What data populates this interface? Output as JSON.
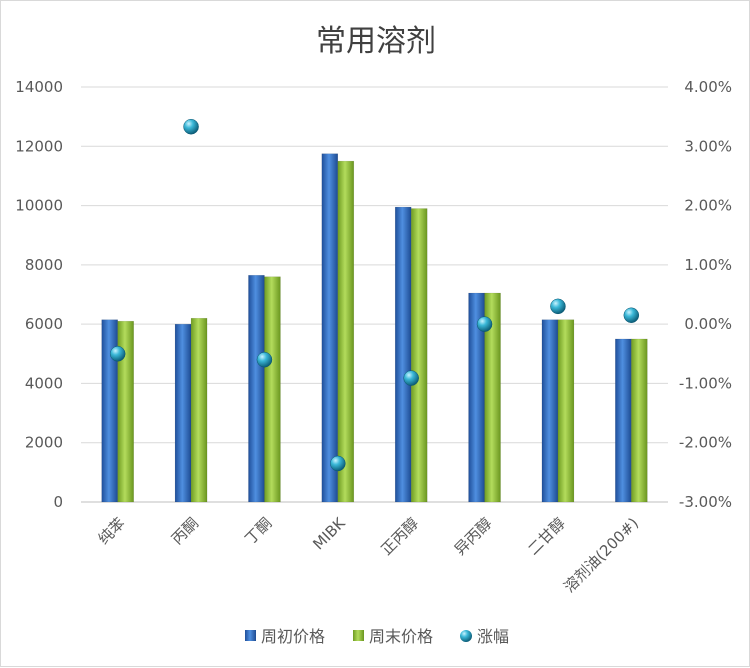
{
  "chart_data": {
    "type": "bar",
    "title": "常用溶剂",
    "categories": [
      "纯苯",
      "丙酮",
      "丁酮",
      "MIBK",
      "正丙醇",
      "异丙醇",
      "二甘醇",
      "溶剂油(200#)"
    ],
    "series": [
      {
        "name": "周初价格",
        "type": "bar",
        "axis": "left",
        "color": "#2e6fc9",
        "values": [
          6150,
          6000,
          7650,
          11750,
          9950,
          7050,
          6150,
          5500
        ]
      },
      {
        "name": "周末价格",
        "type": "bar",
        "axis": "left",
        "color": "#92c23e",
        "values": [
          6100,
          6200,
          7600,
          11500,
          9900,
          7050,
          6150,
          5500
        ]
      },
      {
        "name": "涨幅",
        "type": "scatter",
        "axis": "right",
        "color": "#2aa8c9",
        "values": [
          -0.005,
          0.0333,
          -0.006,
          -0.0235,
          -0.0091,
          0.0,
          0.003,
          0.0015
        ]
      }
    ],
    "y_left": {
      "min": 0,
      "max": 14000,
      "step": 2000,
      "tick_labels": [
        "0",
        "2000",
        "4000",
        "6000",
        "8000",
        "10000",
        "12000",
        "14000"
      ]
    },
    "y_right": {
      "min": -0.03,
      "max": 0.04,
      "step": 0.01,
      "tick_labels": [
        "-3.00%",
        "-2.00%",
        "-1.00%",
        "0.00%",
        "1.00%",
        "2.00%",
        "3.00%",
        "4.00%"
      ]
    },
    "grid": true,
    "legend_position": "bottom"
  }
}
